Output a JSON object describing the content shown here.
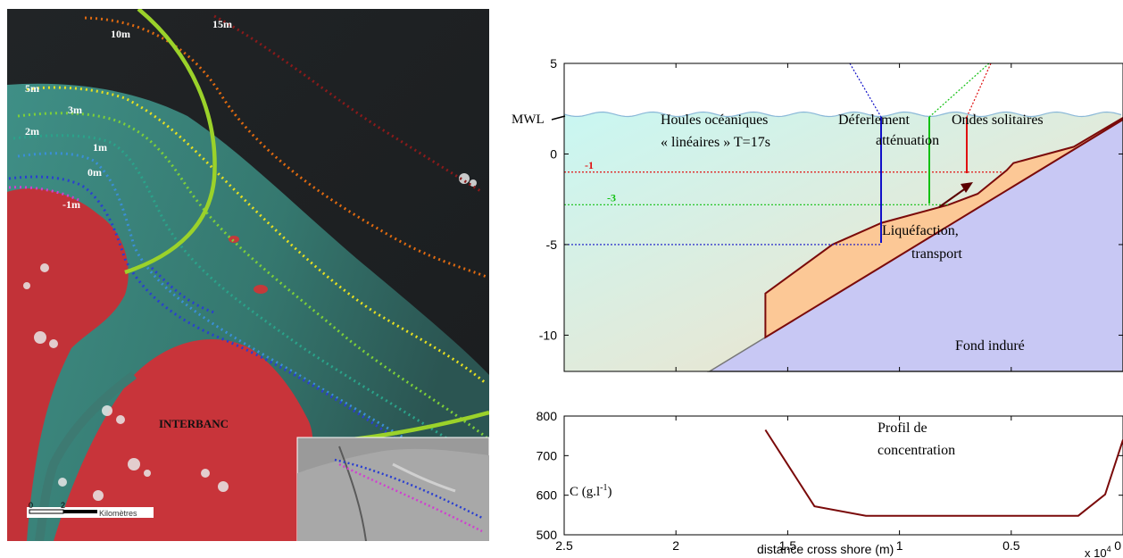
{
  "map": {
    "contour_labels": [
      {
        "text": "15m",
        "color": "#8b1a1a"
      },
      {
        "text": "10m",
        "color": "#e06a10"
      },
      {
        "text": "5m",
        "color": "#e8e020"
      },
      {
        "text": "3m",
        "color": "#7ed038"
      },
      {
        "text": "2m",
        "color": "#2aa38a"
      },
      {
        "text": "1m",
        "color": "#3a8fd8"
      },
      {
        "text": "0m",
        "color": "#2a3fd0"
      },
      {
        "text": "-1m",
        "color": "#d040d0"
      }
    ],
    "interbanc_label": "INTERBANC",
    "scale_ticks": [
      "0",
      "2"
    ],
    "scale_unit": "Kilomètres"
  },
  "chart_data": [
    {
      "type": "line",
      "x": {
        "lim": [
          25000,
          0
        ],
        "ticks": [
          "2.5",
          "2",
          "1.5",
          "1",
          "0.5",
          "0"
        ],
        "tick_values": [
          25000,
          20000,
          15000,
          10000,
          5000,
          0
        ],
        "multiplier_label": "x 10",
        "multiplier_exp": "4"
      },
      "y": {
        "lim": [
          -12,
          5
        ],
        "ticks": [
          5,
          0,
          -5,
          -10
        ]
      },
      "annotations": {
        "mwl": "MWL",
        "houles_1": "Houles océaniques",
        "houles_2": "« linéaires » T=17s",
        "deferlement": "Déferlement",
        "attenuation": "atténuation",
        "ondes": "Ondes solitaires",
        "liquefaction_1": "Liquéfaction,",
        "liquefaction_2": "transport",
        "fond": "Fond induré"
      },
      "depth_lines": [
        {
          "label": "-1",
          "y": -1,
          "color": "#e01010",
          "x_from": 25000,
          "x_to": 5400
        },
        {
          "label": "-3",
          "y": -2.8,
          "color": "#10c010",
          "x_from": 25000,
          "x_to": 7800
        },
        {
          "label": "",
          "y": -5,
          "color": "#1010c8",
          "x_from": 25000,
          "x_to": 10800
        }
      ],
      "bottom": [
        [
          18500,
          -12
        ],
        [
          0,
          1.9
        ]
      ],
      "mud_top": [
        [
          16000,
          -7.7
        ],
        [
          13000,
          -5
        ],
        [
          10800,
          -3.8
        ],
        [
          7800,
          -2.8
        ],
        [
          6500,
          -2.2
        ],
        [
          5200,
          -0.9
        ],
        [
          4900,
          -0.5
        ],
        [
          2200,
          0.4
        ],
        [
          0,
          2
        ]
      ]
    },
    {
      "type": "line",
      "ylabel": "C (g.l",
      "ylabel_exp": "-1",
      "ylabel_end": ")",
      "title_1": "Profil de",
      "title_2": "concentration",
      "xlabel": "distance cross shore (m)",
      "x": {
        "lim": [
          25000,
          0
        ],
        "ticks": [
          "2.5",
          "2",
          "1.5",
          "1",
          "0.5",
          "0"
        ],
        "tick_values": [
          25000,
          20000,
          15000,
          10000,
          5000,
          0
        ]
      },
      "y": {
        "lim": [
          500,
          800
        ],
        "ticks": [
          800,
          700,
          600,
          500
        ]
      },
      "series": [
        {
          "color": "#7a0a0a",
          "x": [
            16000,
            13800,
            11500,
            2000,
            800,
            0
          ],
          "y": [
            765,
            572,
            548,
            548,
            602,
            740
          ]
        }
      ]
    }
  ]
}
